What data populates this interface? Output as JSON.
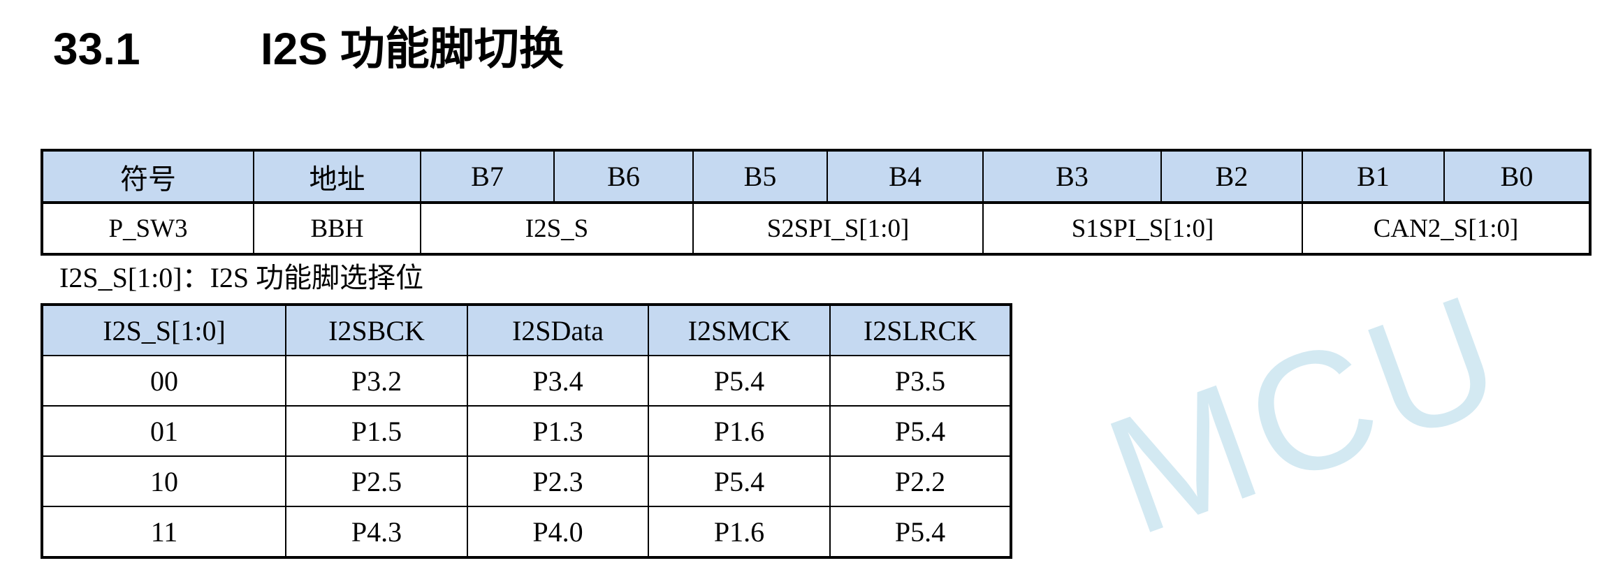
{
  "section": {
    "number": "33.1",
    "title": "I2S 功能脚切换"
  },
  "register_table": {
    "headers": [
      "符号",
      "地址",
      "B7",
      "B6",
      "B5",
      "B4",
      "B3",
      "B2",
      "B1",
      "B0"
    ],
    "row": {
      "symbol": "P_SW3",
      "address": "BBH",
      "b7_6": "I2S_S",
      "b5_4": "S2SPI_S[1:0]",
      "b3_2": "S1SPI_S[1:0]",
      "b1_0": "CAN2_S[1:0]"
    }
  },
  "caption": "I2S_S[1:0]：I2S 功能脚选择位",
  "pin_table": {
    "headers": [
      "I2S_S[1:0]",
      "I2SBCK",
      "I2SData",
      "I2SMCK",
      "I2SLRCK"
    ],
    "rows": [
      [
        "00",
        "P3.2",
        "P3.4",
        "P5.4",
        "P3.5"
      ],
      [
        "01",
        "P1.5",
        "P1.3",
        "P1.6",
        "P5.4"
      ],
      [
        "10",
        "P2.5",
        "P2.3",
        "P5.4",
        "P2.2"
      ],
      [
        "11",
        "P4.3",
        "P4.0",
        "P1.6",
        "P5.4"
      ]
    ]
  },
  "watermark": "MCU",
  "colors": {
    "header_bg": "#c5d9f1",
    "watermark": "#d3e9f2"
  }
}
